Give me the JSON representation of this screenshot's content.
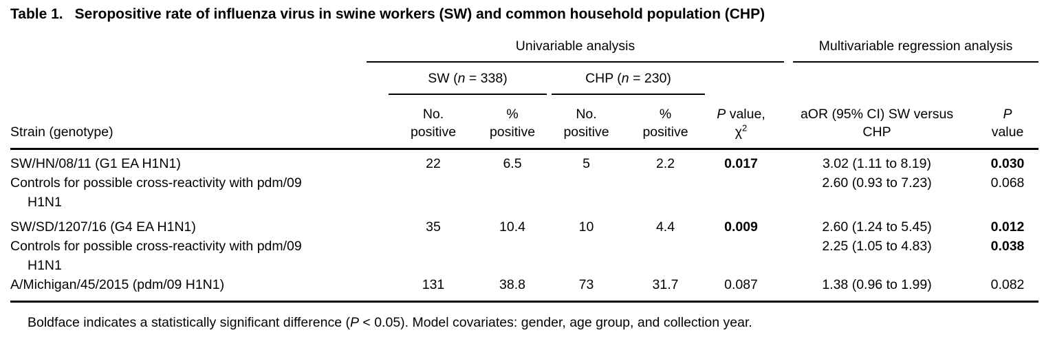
{
  "title": {
    "label": "Table 1.",
    "caption": "Seropositive rate of influenza virus in swine workers (SW) and common household population (CHP)"
  },
  "table": {
    "group_headers": {
      "univariable": "Univariable analysis",
      "multivariable": "Multivariable regression analysis"
    },
    "cohorts": {
      "sw": {
        "pre": "SW (",
        "n": "n",
        "post": " = 338)"
      },
      "chp": {
        "pre": "CHP (",
        "n": "n",
        "post": " = 230)"
      }
    },
    "columns": {
      "strain": "Strain (genotype)",
      "no_positive_line1": "No.",
      "no_positive_line2": "positive",
      "pct_positive_line1": "%",
      "pct_positive_line2": "positive",
      "p_chi": {
        "p": "P",
        "rest": " value,",
        "chi": "χ",
        "sup": "2"
      },
      "aor_line1": "aOR (95% CI) SW versus",
      "aor_line2": "CHP",
      "p": {
        "p": "P",
        "line2": "value"
      }
    },
    "rows": [
      {
        "strain": "SW/HN/08/11 (G1 EA H1N1)",
        "sw_no": "22",
        "sw_pct": "6.5",
        "chp_no": "5",
        "chp_pct": "2.2",
        "p_chi": "0.017",
        "aor": "3.02 (1.11 to 8.19)",
        "p": "0.030"
      },
      {
        "strain_line1": "Controls for possible cross-reactivity with pdm/09",
        "strain_line2": "H1N1",
        "aor": "2.60 (0.93 to 7.23)",
        "p": "0.068"
      },
      {
        "strain": "SW/SD/1207/16 (G4 EA H1N1)",
        "sw_no": "35",
        "sw_pct": "10.4",
        "chp_no": "10",
        "chp_pct": "4.4",
        "p_chi": "0.009",
        "aor": "2.60 (1.24 to 5.45)",
        "p": "0.012"
      },
      {
        "strain_line1": "Controls for possible cross-reactivity with pdm/09",
        "strain_line2": "H1N1",
        "aor": "2.25 (1.05 to 4.83)",
        "p": "0.038"
      },
      {
        "strain": "A/Michigan/45/2015 (pdm/09 H1N1)",
        "sw_no": "131",
        "sw_pct": "38.8",
        "chp_no": "73",
        "chp_pct": "31.7",
        "p_chi": "0.087",
        "aor": "1.38 (0.96 to 1.99)",
        "p": "0.082"
      }
    ]
  },
  "footnote": {
    "pre": "Boldface indicates a statistically significant difference (",
    "p": "P",
    "post": " < 0.05). Model covariates: gender, age group, and collection year."
  }
}
